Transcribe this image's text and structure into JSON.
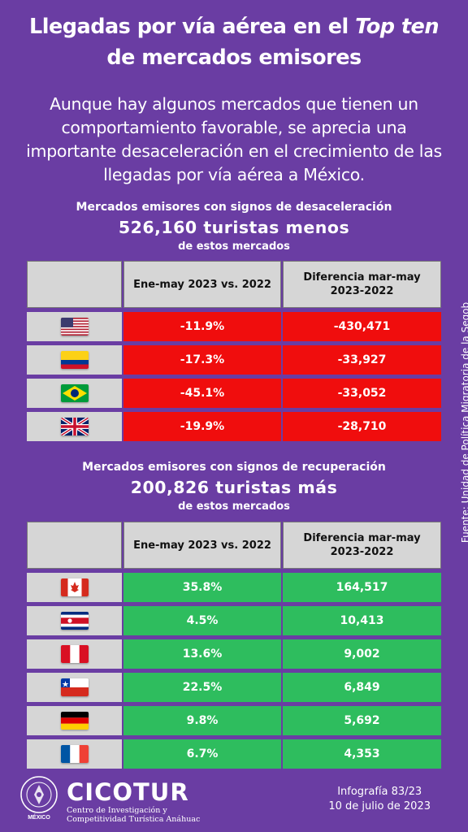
{
  "title": {
    "line1": "Llegadas por vía aérea en el ",
    "line1_italic": "Top ten",
    "line2": "de mercados emisores"
  },
  "intro": "Aunque hay algunos mercados que tienen un comportamiento favorable, se aprecia una importante desaceleración en el crecimiento de las llegadas por vía aérea a México.",
  "deceleration": {
    "heading": "Mercados emisores con signos de desaceleración",
    "big": "526,160 turistas menos",
    "small": "de estos mercados",
    "col1": "Ene-may 2023 vs. 2022",
    "col2_line1": "Diferencia mar-may",
    "col2_line2": "2023-2022",
    "rows": [
      {
        "flag": "usa-flag-icon",
        "pct": "-11.9%",
        "diff": "-430,471"
      },
      {
        "flag": "colombia-flag-icon",
        "pct": "-17.3%",
        "diff": "-33,927"
      },
      {
        "flag": "brazil-flag-icon",
        "pct": "-45.1%",
        "diff": "-33,052"
      },
      {
        "flag": "uk-flag-icon",
        "pct": "-19.9%",
        "diff": "-28,710"
      }
    ]
  },
  "recovery": {
    "heading": "Mercados emisores con signos de recuperación",
    "big": "200,826 turistas más",
    "small": "de estos mercados",
    "col1": "Ene-may 2023 vs. 2022",
    "col2_line1": "Diferencia mar-may",
    "col2_line2": "2023-2022",
    "rows": [
      {
        "flag": "canada-flag-icon",
        "pct": "35.8%",
        "diff": "164,517"
      },
      {
        "flag": "costa-rica-flag-icon",
        "pct": "4.5%",
        "diff": "10,413"
      },
      {
        "flag": "peru-flag-icon",
        "pct": "13.6%",
        "diff": "9,002"
      },
      {
        "flag": "chile-flag-icon",
        "pct": "22.5%",
        "diff": "6,849"
      },
      {
        "flag": "germany-flag-icon",
        "pct": "9.8%",
        "diff": "5,692"
      },
      {
        "flag": "france-flag-icon",
        "pct": "6.7%",
        "diff": "4,353"
      }
    ]
  },
  "source": "Fuente: Unidad de Política Migratoria de la Segob",
  "footer": {
    "logo_label": "MÉXICO",
    "brand": "CICOTUR",
    "brand_sub_line1": "Centro de Investigación y",
    "brand_sub_line2": "Competitividad Turística Anáhuac",
    "infographic": "Infografía 83/23",
    "date": "10 de julio de 2023"
  },
  "colors": {
    "background": "#6a3da3",
    "negative": "#f00d0d",
    "positive": "#2ebd5e",
    "header_cell": "#d6d6d6"
  }
}
